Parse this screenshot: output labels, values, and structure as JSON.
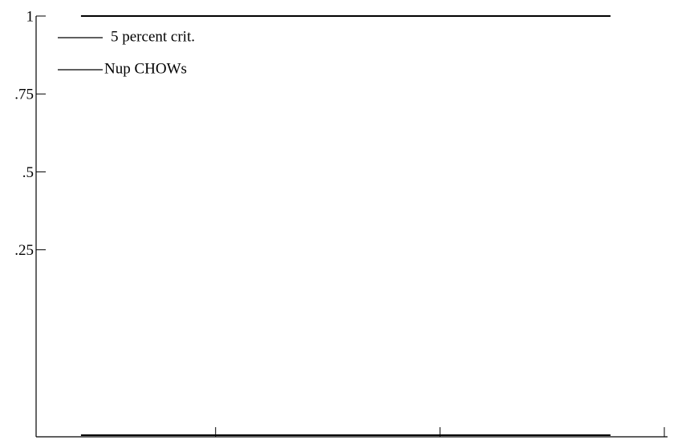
{
  "chart_data": {
    "type": "line",
    "x": [
      1987,
      1988,
      1989,
      1990,
      1991,
      1992,
      1993,
      1994,
      1995,
      1996,
      1997,
      1998,
      1998.8
    ],
    "series": [
      {
        "name": "5 percent crit.",
        "color": "#000000",
        "values": [
          1,
          1,
          1,
          1,
          1,
          1,
          1,
          1,
          1,
          1,
          1,
          1,
          1
        ]
      },
      {
        "name": "Nup CHOWs",
        "color": "#000000",
        "values": [
          -0.345,
          -0.345,
          -0.345,
          -0.345,
          -0.345,
          -0.345,
          -0.345,
          -0.345,
          -0.345,
          -0.345,
          -0.345,
          -0.345,
          -0.345
        ]
      }
    ],
    "xlim": [
      1986,
      2000
    ],
    "xticks": [
      1990,
      1995,
      2000
    ],
    "ylim": [
      -0.35,
      1
    ],
    "yticks": [
      {
        "value": 0.25,
        "label": ".25"
      },
      {
        "value": 0.5,
        "label": ".5"
      },
      {
        "value": 0.75,
        "label": ".75"
      },
      1
    ],
    "legend": "upper left"
  }
}
